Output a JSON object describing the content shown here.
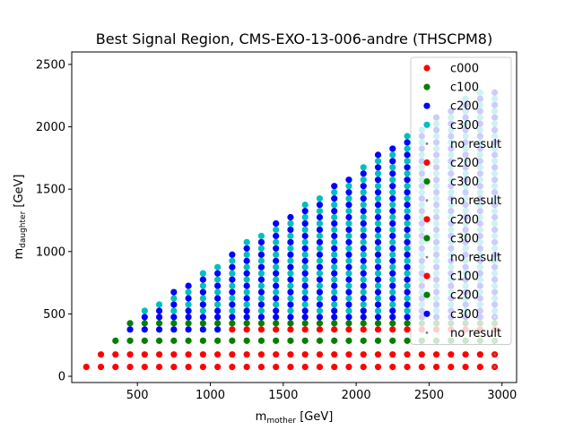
{
  "chart_data": {
    "type": "scatter",
    "title": "Best Signal Region, CMS-EXO-13-006-andre (THSCPM8)",
    "xlabel_main": "m",
    "xlabel_sub": "mother",
    "xlabel_unit": " [GeV]",
    "ylabel_main": "m",
    "ylabel_sub": "daughter",
    "ylabel_unit": " [GeV]",
    "xlim": [
      50,
      3100
    ],
    "ylim": [
      -50,
      2600
    ],
    "xticks": [
      500,
      1000,
      1500,
      2000,
      2500,
      3000
    ],
    "yticks": [
      0,
      500,
      1000,
      1500,
      2000,
      2500
    ],
    "grid": false,
    "legend_position": "top-right",
    "colors": {
      "c000": "#ff0000",
      "c100": "#008000",
      "c200": "#0000ff",
      "c300": "#00bfbf",
      "no_result": "#808080"
    },
    "legend": [
      {
        "label": "c000",
        "color": "#ff0000",
        "marker": "dot"
      },
      {
        "label": "c100",
        "color": "#008000",
        "marker": "dot"
      },
      {
        "label": "c200",
        "color": "#0000ff",
        "marker": "dot"
      },
      {
        "label": "c300",
        "color": "#00bfbf",
        "marker": "dot"
      },
      {
        "label": "no result",
        "color": "#808080",
        "marker": "small"
      },
      {
        "label": "c200",
        "color": "#ff0000",
        "marker": "dot"
      },
      {
        "label": "c300",
        "color": "#008000",
        "marker": "dot"
      },
      {
        "label": "no result",
        "color": "#808080",
        "marker": "small"
      },
      {
        "label": "c200",
        "color": "#ff0000",
        "marker": "dot"
      },
      {
        "label": "c300",
        "color": "#008000",
        "marker": "dot"
      },
      {
        "label": "no result",
        "color": "#808080",
        "marker": "small"
      },
      {
        "label": "c100",
        "color": "#ff0000",
        "marker": "dot"
      },
      {
        "label": "c200",
        "color": "#008000",
        "marker": "dot"
      },
      {
        "label": "c300",
        "color": "#0000ff",
        "marker": "dot"
      },
      {
        "label": "no result",
        "color": "#808080",
        "marker": "small"
      }
    ],
    "grid_spec": {
      "x_start": 150,
      "x_end": 2950,
      "x_step": 100,
      "y_low_rows": [
        75,
        175,
        285
      ],
      "y_step": 50,
      "diagonal_offset": 875
    }
  }
}
